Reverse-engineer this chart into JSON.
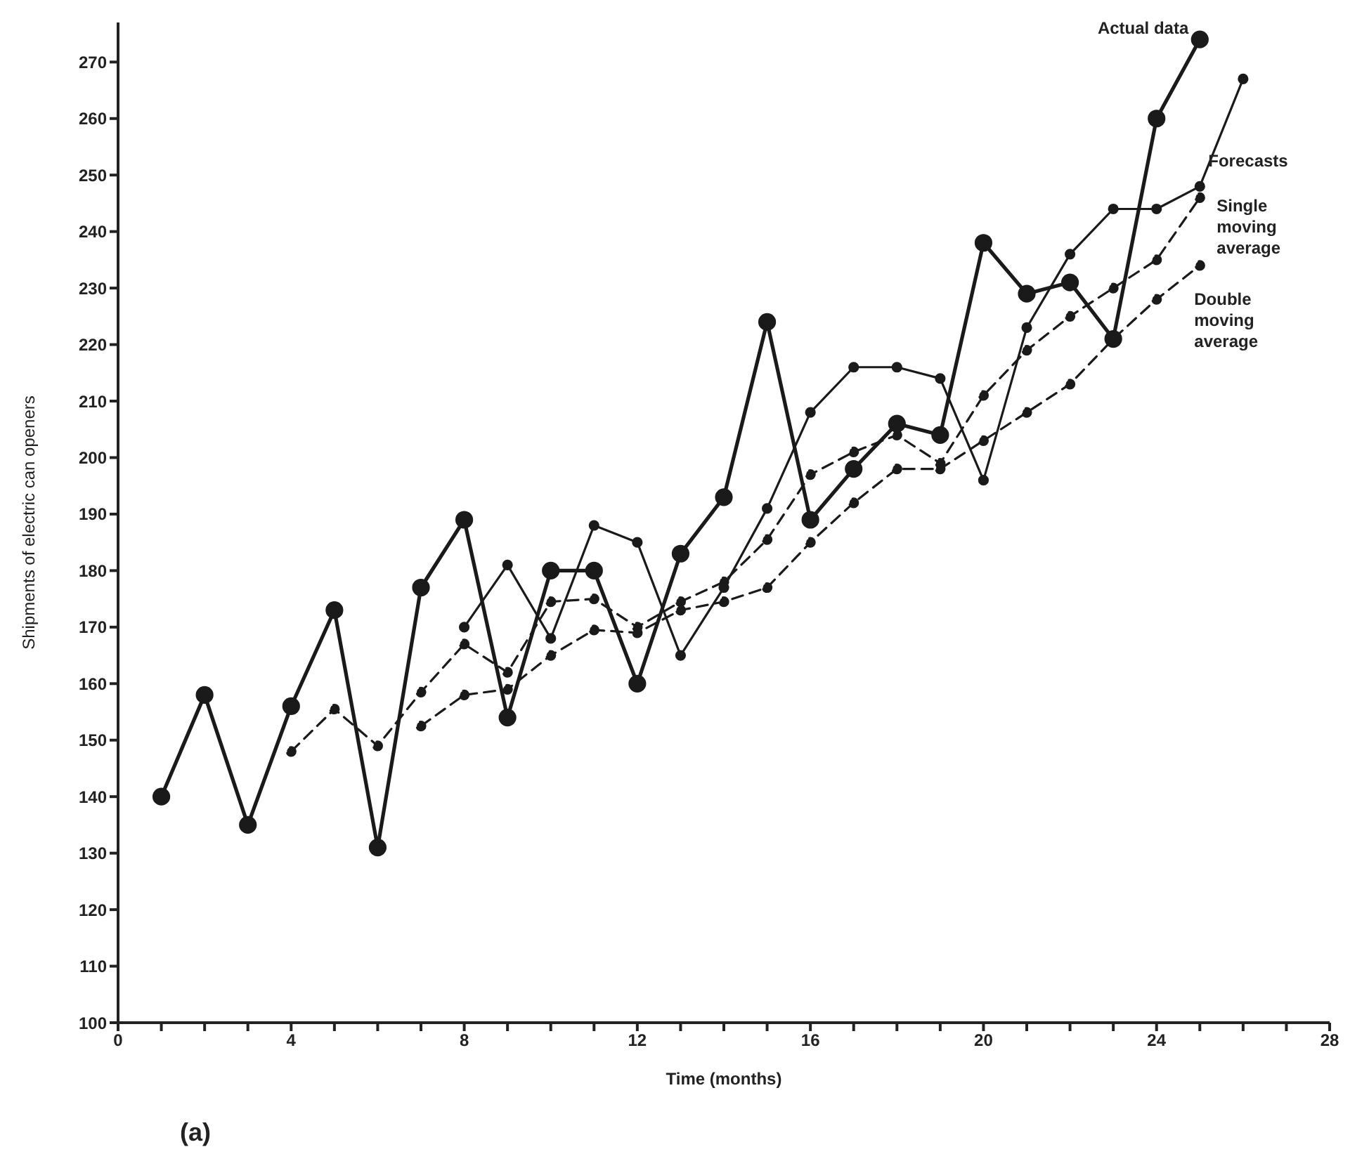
{
  "chart_data": {
    "type": "line",
    "xlabel": "Time (months)",
    "ylabel": "Shipments of electric can openers",
    "xlim": [
      0,
      28
    ],
    "xticks": [
      0,
      {
        "value": 1,
        "label": null
      },
      {
        "value": 2,
        "label": null
      },
      {
        "value": 3,
        "label": null
      },
      4,
      {
        "value": 5,
        "label": null
      },
      {
        "value": 6,
        "label": null
      },
      {
        "value": 7,
        "label": null
      },
      8,
      {
        "value": 9,
        "label": null
      },
      {
        "value": 10,
        "label": null
      },
      {
        "value": 11,
        "label": null
      },
      12,
      {
        "value": 13,
        "label": null
      },
      {
        "value": 14,
        "label": null
      },
      {
        "value": 15,
        "label": null
      },
      16,
      {
        "value": 17,
        "label": null
      },
      {
        "value": 18,
        "label": null
      },
      {
        "value": 19,
        "label": null
      },
      20,
      {
        "value": 21,
        "label": null
      },
      {
        "value": 22,
        "label": null
      },
      {
        "value": 23,
        "label": null
      },
      24,
      {
        "value": 25,
        "label": null
      },
      {
        "value": 26,
        "label": null
      },
      {
        "value": 27,
        "label": null
      },
      28
    ],
    "ylim": [
      100,
      277
    ],
    "yticks": [
      100,
      110,
      120,
      130,
      140,
      150,
      160,
      170,
      180,
      190,
      200,
      210,
      220,
      230,
      240,
      250,
      260,
      270
    ],
    "grid": false,
    "legend": false,
    "marker": "circle",
    "annotations": [
      "(a)"
    ],
    "series": [
      {
        "name": "Actual data",
        "color": "#1a1a1a",
        "line_style": "solid",
        "x": [
          1,
          2,
          3,
          4,
          5,
          6,
          7,
          8,
          9,
          10,
          11,
          12,
          13,
          14,
          15,
          16,
          17,
          18,
          19,
          20,
          21,
          22,
          23,
          24,
          25
        ],
        "values": [
          140,
          158,
          135,
          156,
          173,
          131,
          177,
          189,
          154,
          180,
          180,
          160,
          183,
          193,
          224,
          189,
          198,
          206,
          204,
          238,
          229,
          231,
          221,
          260,
          274
        ]
      },
      {
        "name": "Forecasts",
        "color": "#1a1a1a",
        "line_style": "solid",
        "x": [
          8,
          9,
          10,
          11,
          12,
          13,
          14,
          15,
          16,
          17,
          18,
          19,
          20,
          21,
          22,
          23,
          24,
          25,
          26
        ],
        "values": [
          170,
          181,
          168,
          188,
          185,
          165,
          177,
          191,
          208,
          216,
          216,
          214,
          196,
          223,
          236,
          244,
          244,
          248,
          267
        ]
      },
      {
        "name": "Single moving average",
        "color": "#1a1a1a",
        "line_style": "dashed",
        "x": [
          4,
          5,
          6,
          7,
          8,
          9,
          10,
          11,
          12,
          13,
          14,
          15,
          16,
          17,
          18,
          19,
          20,
          21,
          22,
          23,
          24,
          25
        ],
        "values": [
          148,
          155.5,
          149,
          158.5,
          167,
          162,
          174.5,
          175,
          170,
          174.5,
          178,
          185.5,
          197,
          201,
          204,
          199,
          211,
          219,
          225,
          230,
          235,
          246
        ]
      },
      {
        "name": "Double moving average",
        "color": "#1a1a1a",
        "line_style": "dashed",
        "x": [
          7,
          8,
          9,
          10,
          11,
          12,
          13,
          14,
          15,
          16,
          17,
          18,
          19,
          20,
          21,
          22,
          23,
          24,
          25
        ],
        "values": [
          152.5,
          158,
          159,
          165,
          169.5,
          169,
          173,
          174.5,
          177,
          185,
          192,
          198,
          198,
          203,
          208,
          213,
          221,
          228,
          234
        ]
      }
    ]
  }
}
